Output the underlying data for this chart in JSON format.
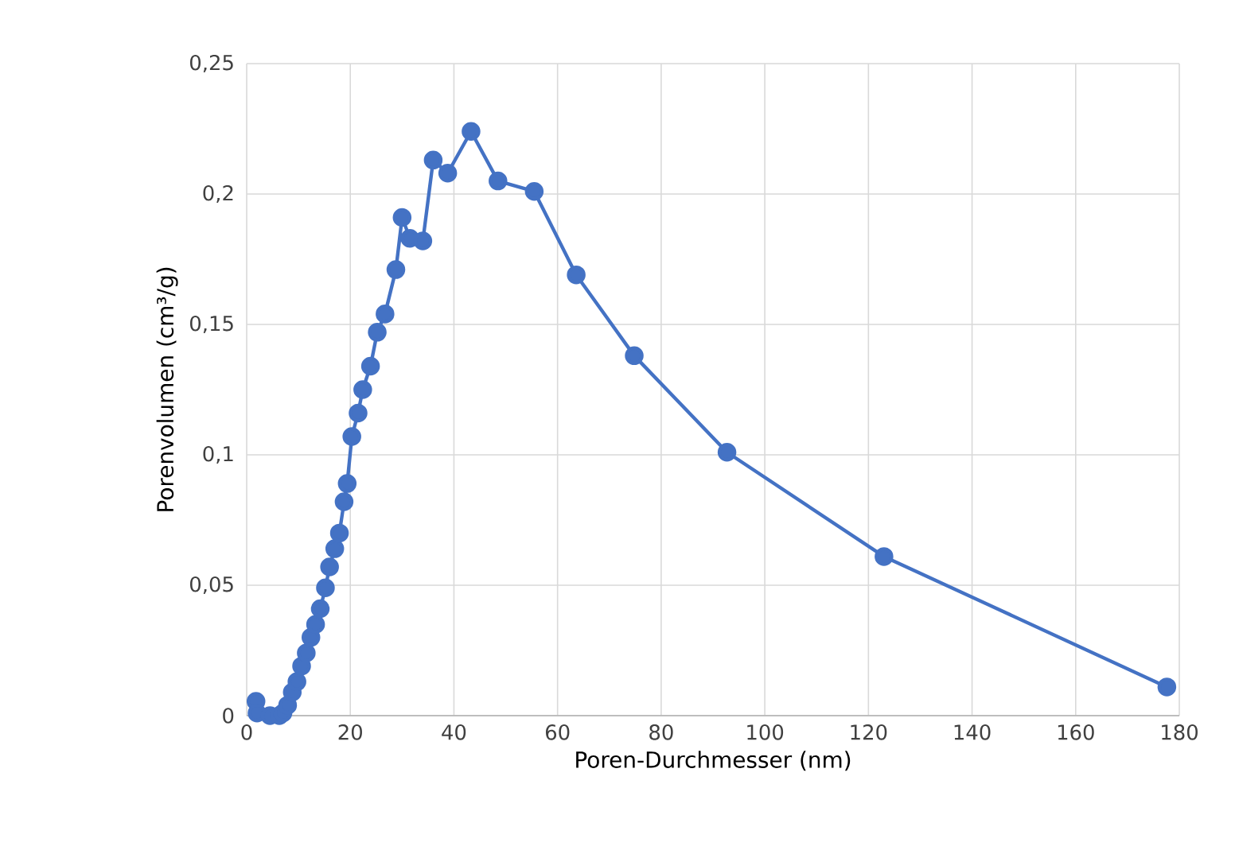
{
  "chart_data": {
    "type": "line",
    "xlabel": "Poren-Durchmesser (nm)",
    "ylabel": "Porenvolumen (cm³/g)",
    "xlim": [
      0,
      180
    ],
    "xticks": [
      0,
      20,
      40,
      60,
      80,
      100,
      120,
      140,
      160,
      180
    ],
    "ylim": [
      0,
      0.25
    ],
    "yticks": [
      {
        "value": 0,
        "label": "0"
      },
      {
        "value": 0.05,
        "label": "0,05"
      },
      {
        "value": 0.1,
        "label": "0,1"
      },
      {
        "value": 0.15,
        "label": "0,15"
      },
      {
        "value": 0.2,
        "label": "0,2"
      },
      {
        "value": 0.25,
        "label": "0,25"
      }
    ],
    "grid": true,
    "marker": "circle",
    "line_style": "solid",
    "series": [
      {
        "color": "#4472c4",
        "x": [
          1.8,
          2.0,
          4.5,
          6.3,
          7.0,
          7.9,
          8.8,
          9.7,
          10.6,
          11.5,
          12.4,
          13.3,
          14.2,
          15.2,
          16.0,
          17.0,
          17.9,
          18.8,
          19.4,
          20.3,
          21.5,
          22.4,
          23.9,
          25.2,
          26.7,
          28.8,
          30.0,
          31.5,
          34.0,
          36.0,
          38.8,
          43.3,
          48.5,
          55.5,
          63.6,
          74.8,
          92.7,
          123.0,
          177.6
        ],
        "values": [
          0.0055,
          0.001,
          0.0,
          0.0,
          0.001,
          0.004,
          0.009,
          0.013,
          0.019,
          0.024,
          0.03,
          0.035,
          0.041,
          0.049,
          0.057,
          0.064,
          0.07,
          0.082,
          0.089,
          0.107,
          0.116,
          0.125,
          0.134,
          0.147,
          0.154,
          0.171,
          0.191,
          0.183,
          0.182,
          0.213,
          0.208,
          0.224,
          0.205,
          0.201,
          0.169,
          0.138,
          0.101,
          0.061,
          0.011
        ]
      }
    ]
  }
}
